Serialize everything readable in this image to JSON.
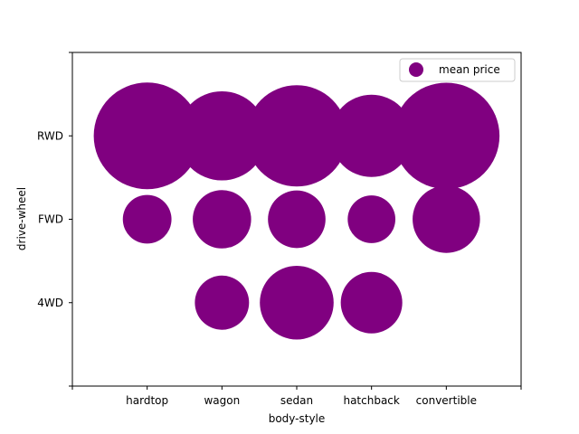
{
  "chart_data": {
    "type": "scatter",
    "xlabel": "body-style",
    "ylabel": "drive-wheel",
    "x_categories": [
      "",
      "hardtop",
      "wagon",
      "sedan",
      "hatchback",
      "convertible",
      ""
    ],
    "y_categories": [
      "",
      "4WD",
      "FWD",
      "RWD",
      ""
    ],
    "xlim": [
      0,
      6
    ],
    "ylim": [
      0,
      4
    ],
    "legend": {
      "position": "top-right",
      "entries": [
        "mean price"
      ]
    },
    "marker_color": "#800080",
    "grid": false,
    "series": [
      {
        "name": "mean price",
        "points": [
          {
            "x": "hardtop",
            "y": "RWD",
            "value": 24100
          },
          {
            "x": "wagon",
            "y": "RWD",
            "value": 16800
          },
          {
            "x": "sedan",
            "y": "RWD",
            "value": 21700
          },
          {
            "x": "hatchback",
            "y": "RWD",
            "value": 14300
          },
          {
            "x": "convertible",
            "y": "RWD",
            "value": 23900
          },
          {
            "x": "hardtop",
            "y": "FWD",
            "value": 5000
          },
          {
            "x": "wagon",
            "y": "FWD",
            "value": 7200
          },
          {
            "x": "sedan",
            "y": "FWD",
            "value": 7000
          },
          {
            "x": "hatchback",
            "y": "FWD",
            "value": 4800
          },
          {
            "x": "convertible",
            "y": "FWD",
            "value": 9600
          },
          {
            "x": "wagon",
            "y": "4WD",
            "value": 6200
          },
          {
            "x": "sedan",
            "y": "4WD",
            "value": 11500
          },
          {
            "x": "hatchback",
            "y": "4WD",
            "value": 8000
          }
        ]
      }
    ]
  }
}
